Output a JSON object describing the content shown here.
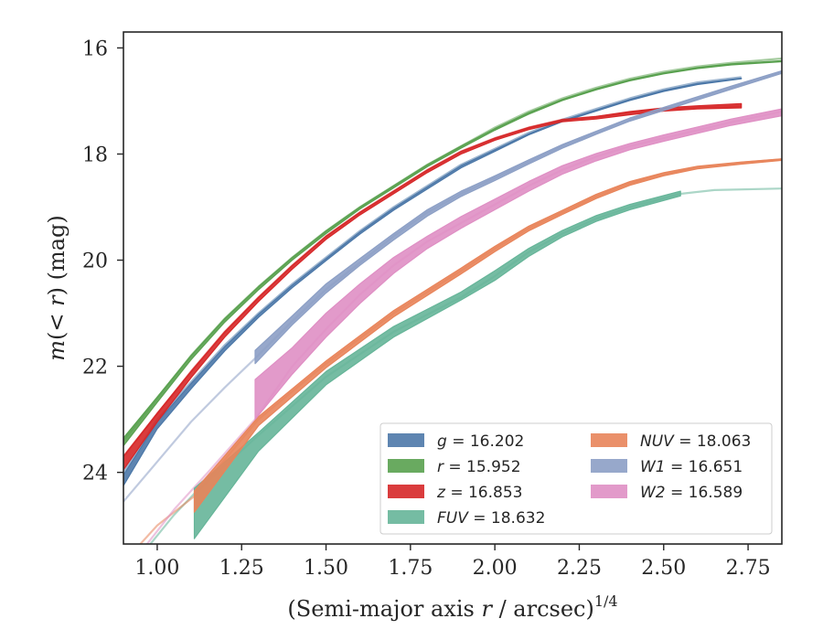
{
  "chart_data": {
    "type": "line",
    "title": "",
    "xlabel_parts": {
      "pre": "(Semi-major axis ",
      "var": "r",
      "post": " / arcsec)",
      "sup": "1/4"
    },
    "ylabel_parts": {
      "a": "m",
      "b": "(< ",
      "c": "r",
      "d": ") (mag)"
    },
    "xlim": [
      0.9,
      2.85
    ],
    "ylim": [
      25.35,
      15.7
    ],
    "y_inverted": true,
    "xticks": [
      1.0,
      1.25,
      1.5,
      1.75,
      2.0,
      2.25,
      2.5,
      2.75
    ],
    "xtick_labels": [
      "1.00",
      "1.25",
      "1.50",
      "1.75",
      "2.00",
      "2.25",
      "2.50",
      "2.75"
    ],
    "yticks": [
      16,
      18,
      20,
      22,
      24
    ],
    "ytick_labels": [
      "16",
      "18",
      "20",
      "22",
      "24"
    ],
    "grid": false,
    "legend_position": "lower-right",
    "series": [
      {
        "name": "g",
        "label_var": "g",
        "label_value": "16.202",
        "color": "#4c78a8",
        "faint": [
          [
            0.9,
            24.0
          ],
          [
            1.0,
            23.0
          ],
          [
            1.1,
            22.3
          ],
          [
            1.2,
            21.6
          ],
          [
            1.3,
            21.0
          ],
          [
            1.4,
            20.45
          ],
          [
            1.5,
            19.95
          ],
          [
            1.6,
            19.45
          ],
          [
            1.7,
            19.0
          ],
          [
            1.8,
            18.6
          ],
          [
            1.9,
            18.2
          ],
          [
            2.0,
            17.9
          ],
          [
            2.1,
            17.6
          ],
          [
            2.2,
            17.35
          ],
          [
            2.3,
            17.15
          ],
          [
            2.4,
            16.95
          ],
          [
            2.5,
            16.78
          ],
          [
            2.6,
            16.65
          ],
          [
            2.73,
            16.55
          ]
        ],
        "band_x": [
          0.9,
          1.0,
          1.1,
          1.2,
          1.3,
          1.4,
          1.5,
          1.6,
          1.7,
          1.8,
          1.9,
          2.0,
          2.1,
          2.2,
          2.3,
          2.4,
          2.5,
          2.6,
          2.73
        ],
        "band_upper": [
          24.05,
          23.05,
          22.33,
          21.63,
          21.02,
          20.47,
          19.97,
          19.47,
          19.02,
          18.62,
          18.22,
          17.92,
          17.62,
          17.37,
          17.17,
          16.97,
          16.8,
          16.67,
          16.57
        ],
        "band_lower": [
          24.25,
          23.18,
          22.43,
          21.71,
          21.08,
          20.52,
          20.01,
          19.51,
          19.06,
          18.66,
          18.26,
          17.95,
          17.64,
          17.39,
          17.19,
          16.99,
          16.82,
          16.69,
          16.58
        ]
      },
      {
        "name": "r",
        "label_var": "r",
        "label_value": "15.952",
        "color": "#59a14f",
        "faint": [
          [
            0.9,
            23.4
          ],
          [
            1.0,
            22.6
          ],
          [
            1.1,
            21.8
          ],
          [
            1.2,
            21.1
          ],
          [
            1.3,
            20.5
          ],
          [
            1.4,
            19.95
          ],
          [
            1.5,
            19.45
          ],
          [
            1.6,
            19.0
          ],
          [
            1.7,
            18.6
          ],
          [
            1.8,
            18.2
          ],
          [
            1.9,
            17.85
          ],
          [
            2.0,
            17.5
          ],
          [
            2.1,
            17.2
          ],
          [
            2.2,
            16.95
          ],
          [
            2.3,
            16.75
          ],
          [
            2.4,
            16.58
          ],
          [
            2.5,
            16.45
          ],
          [
            2.6,
            16.35
          ],
          [
            2.7,
            16.28
          ],
          [
            2.85,
            16.2
          ]
        ],
        "band_x": [
          0.9,
          1.0,
          1.1,
          1.2,
          1.3,
          1.4,
          1.5,
          1.6,
          1.7,
          1.8,
          1.9,
          2.0,
          2.1,
          2.2,
          2.3,
          2.4,
          2.5,
          2.6,
          2.7,
          2.85
        ],
        "band_upper": [
          23.35,
          22.58,
          21.8,
          21.1,
          20.5,
          19.95,
          19.45,
          19.0,
          18.6,
          18.2,
          17.85,
          17.52,
          17.22,
          16.97,
          16.77,
          16.6,
          16.47,
          16.37,
          16.3,
          16.24
        ],
        "band_lower": [
          23.5,
          22.68,
          21.88,
          21.17,
          20.56,
          20.0,
          19.5,
          19.04,
          18.64,
          18.24,
          17.89,
          17.55,
          17.25,
          16.99,
          16.79,
          16.62,
          16.49,
          16.39,
          16.32,
          16.26
        ]
      },
      {
        "name": "z",
        "label_var": "z",
        "label_value": "16.853",
        "color": "#d62728",
        "faint": [
          [
            0.9,
            23.7
          ],
          [
            1.0,
            22.9
          ],
          [
            1.1,
            22.1
          ],
          [
            1.2,
            21.35
          ],
          [
            1.3,
            20.7
          ],
          [
            1.4,
            20.1
          ],
          [
            1.5,
            19.55
          ],
          [
            1.6,
            19.1
          ],
          [
            1.7,
            18.7
          ],
          [
            1.8,
            18.3
          ],
          [
            1.9,
            17.95
          ],
          [
            2.0,
            17.7
          ],
          [
            2.1,
            17.5
          ],
          [
            2.2,
            17.35
          ],
          [
            2.3,
            17.3
          ],
          [
            2.4,
            17.22
          ],
          [
            2.5,
            17.15
          ],
          [
            2.6,
            17.12
          ],
          [
            2.73,
            17.1
          ]
        ],
        "band_x": [
          0.9,
          1.0,
          1.1,
          1.2,
          1.3,
          1.4,
          1.5,
          1.6,
          1.7,
          1.8,
          1.9,
          2.0,
          2.1,
          2.2,
          2.3,
          2.4,
          2.5,
          2.6,
          2.73
        ],
        "band_upper": [
          23.7,
          22.88,
          22.1,
          21.35,
          20.7,
          20.1,
          19.55,
          19.1,
          18.7,
          18.3,
          17.95,
          17.7,
          17.5,
          17.35,
          17.29,
          17.2,
          17.13,
          17.09,
          17.05
        ],
        "band_lower": [
          23.95,
          23.05,
          22.22,
          21.45,
          20.78,
          20.17,
          19.61,
          19.15,
          18.75,
          18.35,
          18.0,
          17.74,
          17.54,
          17.39,
          17.34,
          17.26,
          17.19,
          17.15,
          17.13
        ]
      },
      {
        "name": "FUV",
        "label_var": "FUV",
        "label_value": "18.632",
        "color": "#66b599",
        "faint": [
          [
            0.98,
            25.35
          ],
          [
            1.05,
            24.8
          ],
          [
            1.11,
            24.4
          ],
          [
            1.3,
            23.3
          ],
          [
            1.5,
            22.2
          ],
          [
            1.7,
            21.35
          ],
          [
            1.9,
            20.7
          ],
          [
            2.0,
            20.3
          ],
          [
            2.1,
            19.85
          ],
          [
            2.2,
            19.5
          ],
          [
            2.3,
            19.22
          ],
          [
            2.4,
            19.0
          ],
          [
            2.55,
            18.75
          ],
          [
            2.65,
            18.68
          ],
          [
            2.85,
            18.65
          ]
        ],
        "band_x": [
          1.11,
          1.3,
          1.5,
          1.7,
          1.9,
          2.0,
          2.1,
          2.2,
          2.3,
          2.4,
          2.55
        ],
        "band_upper": [
          24.3,
          23.25,
          22.1,
          21.25,
          20.6,
          20.2,
          19.78,
          19.44,
          19.16,
          18.95,
          18.7
        ],
        "band_lower": [
          25.25,
          23.6,
          22.35,
          21.45,
          20.75,
          20.38,
          19.93,
          19.56,
          19.27,
          19.05,
          18.79
        ]
      },
      {
        "name": "NUV",
        "label_var": "NUV",
        "label_value": "18.063",
        "color": "#e8845a",
        "faint": [
          [
            0.95,
            25.35
          ],
          [
            1.0,
            25.0
          ],
          [
            1.11,
            24.45
          ],
          [
            1.3,
            23.0
          ],
          [
            1.5,
            21.95
          ],
          [
            1.7,
            21.0
          ],
          [
            1.9,
            20.2
          ],
          [
            2.0,
            19.78
          ],
          [
            2.1,
            19.4
          ],
          [
            2.2,
            19.1
          ],
          [
            2.3,
            18.8
          ],
          [
            2.4,
            18.55
          ],
          [
            2.5,
            18.38
          ],
          [
            2.6,
            18.25
          ],
          [
            2.73,
            18.16
          ],
          [
            2.85,
            18.1
          ]
        ],
        "band_x": [
          1.11,
          1.3,
          1.5,
          1.7,
          1.9,
          2.0,
          2.1,
          2.2,
          2.3,
          2.4,
          2.5,
          2.6,
          2.73,
          2.85
        ],
        "band_upper": [
          24.35,
          22.95,
          21.9,
          20.95,
          20.15,
          19.74,
          19.36,
          19.06,
          18.76,
          18.52,
          18.35,
          18.23,
          18.15,
          18.09
        ],
        "band_lower": [
          24.75,
          23.12,
          22.03,
          21.07,
          20.26,
          19.84,
          19.45,
          19.14,
          18.84,
          18.59,
          18.41,
          18.28,
          18.19,
          18.12
        ]
      },
      {
        "name": "W1",
        "label_var": "W1",
        "label_value": "16.651",
        "color": "#8c9fc5",
        "faint": [
          [
            0.9,
            24.55
          ],
          [
            1.0,
            23.8
          ],
          [
            1.1,
            23.05
          ],
          [
            1.2,
            22.4
          ],
          [
            1.29,
            21.85
          ],
          [
            1.4,
            21.15
          ],
          [
            1.5,
            20.55
          ],
          [
            1.6,
            20.05
          ],
          [
            1.7,
            19.55
          ],
          [
            1.8,
            19.1
          ],
          [
            1.9,
            18.75
          ],
          [
            2.0,
            18.45
          ],
          [
            2.1,
            18.15
          ],
          [
            2.2,
            17.85
          ],
          [
            2.3,
            17.6
          ],
          [
            2.4,
            17.35
          ],
          [
            2.5,
            17.15
          ],
          [
            2.6,
            16.95
          ],
          [
            2.7,
            16.75
          ],
          [
            2.85,
            16.45
          ]
        ],
        "band_x": [
          1.29,
          1.4,
          1.5,
          1.6,
          1.7,
          1.8,
          1.9,
          2.0,
          2.1,
          2.2,
          2.3,
          2.4,
          2.5,
          2.6,
          2.7,
          2.85
        ],
        "band_upper": [
          21.7,
          21.05,
          20.45,
          19.97,
          19.5,
          19.05,
          18.7,
          18.41,
          18.11,
          17.82,
          17.57,
          17.32,
          17.12,
          16.92,
          16.72,
          16.43
        ],
        "band_lower": [
          21.95,
          21.22,
          20.62,
          20.1,
          19.62,
          19.17,
          18.8,
          18.5,
          18.19,
          17.89,
          17.63,
          17.38,
          17.18,
          16.98,
          16.78,
          16.48
        ]
      },
      {
        "name": "W2",
        "label_var": "W2",
        "label_value": "16.589",
        "color": "#df8fc4",
        "faint": [
          [
            0.97,
            25.35
          ],
          [
            1.05,
            24.7
          ],
          [
            1.15,
            24.0
          ],
          [
            1.29,
            23.0
          ],
          [
            1.4,
            22.0
          ],
          [
            1.5,
            21.3
          ],
          [
            1.6,
            20.65
          ],
          [
            1.7,
            20.1
          ],
          [
            1.8,
            19.65
          ],
          [
            1.9,
            19.3
          ],
          [
            2.0,
            18.95
          ],
          [
            2.1,
            18.6
          ],
          [
            2.2,
            18.3
          ],
          [
            2.3,
            18.05
          ],
          [
            2.4,
            17.85
          ],
          [
            2.5,
            17.7
          ],
          [
            2.6,
            17.55
          ],
          [
            2.7,
            17.4
          ],
          [
            2.85,
            17.2
          ]
        ],
        "band_x": [
          1.29,
          1.4,
          1.5,
          1.6,
          1.7,
          1.8,
          1.9,
          2.0,
          2.1,
          2.2,
          2.3,
          2.4,
          2.5,
          2.6,
          2.7,
          2.85
        ],
        "band_upper": [
          22.25,
          21.65,
          21.0,
          20.45,
          19.95,
          19.55,
          19.18,
          18.85,
          18.52,
          18.22,
          17.99,
          17.8,
          17.64,
          17.49,
          17.34,
          17.15
        ],
        "band_lower": [
          23.0,
          22.15,
          21.45,
          20.82,
          20.25,
          19.78,
          19.4,
          19.05,
          18.7,
          18.38,
          18.13,
          17.92,
          17.76,
          17.61,
          17.46,
          17.28
        ]
      }
    ],
    "legend_columns": [
      [
        "g",
        "r",
        "z",
        "FUV"
      ],
      [
        "NUV",
        "W1",
        "W2"
      ]
    ]
  }
}
